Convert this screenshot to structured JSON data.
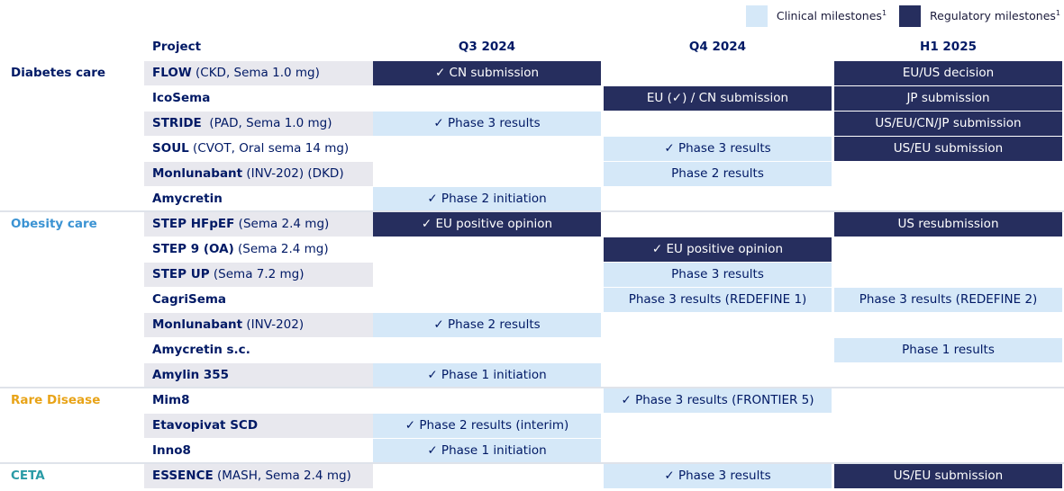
{
  "legend": {
    "clinical_label": "Clinical milestones",
    "regulatory_label": "Regulatory milestones",
    "footnote_mark": "1",
    "clinical_color": "#d5e8f8",
    "regulatory_color": "#262e5e"
  },
  "headers": {
    "project": "Project",
    "periods": [
      "Q3 2024",
      "Q4 2024",
      "H1 2025"
    ]
  },
  "category_colors": {
    "Diabetes care": "#001965",
    "Obesity care": "#3b93d3",
    "Rare Disease": "#e8a317",
    "CETA": "#2a9ba6"
  },
  "rows": [
    {
      "category": "Diabetes care",
      "name": "FLOW",
      "detail": " (CKD, Sema 1.0 mg)",
      "cells": [
        {
          "text": "✓ CN submission",
          "type": "regulatory"
        },
        null,
        {
          "text": "EU/US decision",
          "type": "regulatory"
        }
      ]
    },
    {
      "category": "",
      "name": "IcoSema",
      "detail": "",
      "cells": [
        null,
        {
          "text": "EU (✓) / CN submission",
          "type": "regulatory"
        },
        {
          "text": "JP submission",
          "type": "regulatory"
        }
      ]
    },
    {
      "category": "",
      "name": "STRIDE",
      "detail": "  (PAD, Sema 1.0 mg)",
      "cells": [
        {
          "text": "✓ Phase 3 results",
          "type": "clinical"
        },
        null,
        {
          "text": "US/EU/CN/JP submission",
          "type": "regulatory"
        }
      ]
    },
    {
      "category": "",
      "name": "SOUL",
      "detail": " (CVOT, Oral sema 14 mg)",
      "cells": [
        null,
        {
          "text": "✓ Phase 3 results",
          "type": "clinical"
        },
        {
          "text": "US/EU submission",
          "type": "regulatory"
        }
      ]
    },
    {
      "category": "",
      "name": "Monlunabant",
      "detail": " (INV-202) (DKD)",
      "cells": [
        null,
        {
          "text": "Phase 2 results",
          "type": "clinical"
        },
        null
      ]
    },
    {
      "category": "",
      "name": "Amycretin",
      "detail": "",
      "cells": [
        {
          "text": "✓ Phase 2 initiation",
          "type": "clinical"
        },
        null,
        null
      ]
    },
    {
      "category": "Obesity care",
      "name": "STEP HFpEF",
      "detail": " (Sema 2.4 mg)",
      "cells": [
        {
          "text": "✓ EU positive opinion",
          "type": "regulatory"
        },
        null,
        {
          "text": "US resubmission",
          "type": "regulatory"
        }
      ]
    },
    {
      "category": "",
      "name": "STEP 9 (OA)",
      "detail": " (Sema 2.4 mg)",
      "cells": [
        null,
        {
          "text": "✓ EU positive opinion",
          "type": "regulatory"
        },
        null
      ]
    },
    {
      "category": "",
      "name": "STEP UP",
      "detail": " (Sema 7.2 mg)",
      "cells": [
        null,
        {
          "text": "Phase 3 results",
          "type": "clinical"
        },
        null
      ]
    },
    {
      "category": "",
      "name": "CagriSema",
      "detail": "",
      "cells": [
        null,
        {
          "text": "Phase 3 results (REDEFINE 1)",
          "type": "clinical"
        },
        {
          "text": "Phase 3 results (REDEFINE 2)",
          "type": "clinical"
        }
      ]
    },
    {
      "category": "",
      "name": "Monlunabant",
      "detail": " (INV-202)",
      "cells": [
        {
          "text": "✓ Phase 2 results",
          "type": "clinical"
        },
        null,
        null
      ]
    },
    {
      "category": "",
      "name": "Amycretin s.c.",
      "detail": "",
      "cells": [
        null,
        null,
        {
          "text": "Phase 1 results",
          "type": "clinical"
        }
      ]
    },
    {
      "category": "",
      "name": "Amylin 355",
      "detail": "",
      "cells": [
        {
          "text": "✓ Phase 1 initiation",
          "type": "clinical"
        },
        null,
        null
      ]
    },
    {
      "category": "Rare Disease",
      "name": "Mim8",
      "detail": "",
      "cells": [
        null,
        {
          "text": "✓ Phase 3 results (FRONTIER 5)",
          "type": "clinical"
        },
        null
      ]
    },
    {
      "category": "",
      "name": "Etavopivat SCD",
      "detail": "",
      "cells": [
        {
          "text": "✓ Phase 2 results (interim)",
          "type": "clinical"
        },
        null,
        null
      ]
    },
    {
      "category": "",
      "name": "Inno8",
      "detail": "",
      "cells": [
        {
          "text": "✓ Phase 1 initiation",
          "type": "clinical"
        },
        null,
        null
      ]
    },
    {
      "category": "CETA",
      "name": "ESSENCE",
      "detail": " (MASH, Sema 2.4 mg)",
      "cells": [
        null,
        {
          "text": "✓ Phase 3 results",
          "type": "clinical"
        },
        {
          "text": "US/EU submission",
          "type": "regulatory"
        }
      ]
    }
  ]
}
